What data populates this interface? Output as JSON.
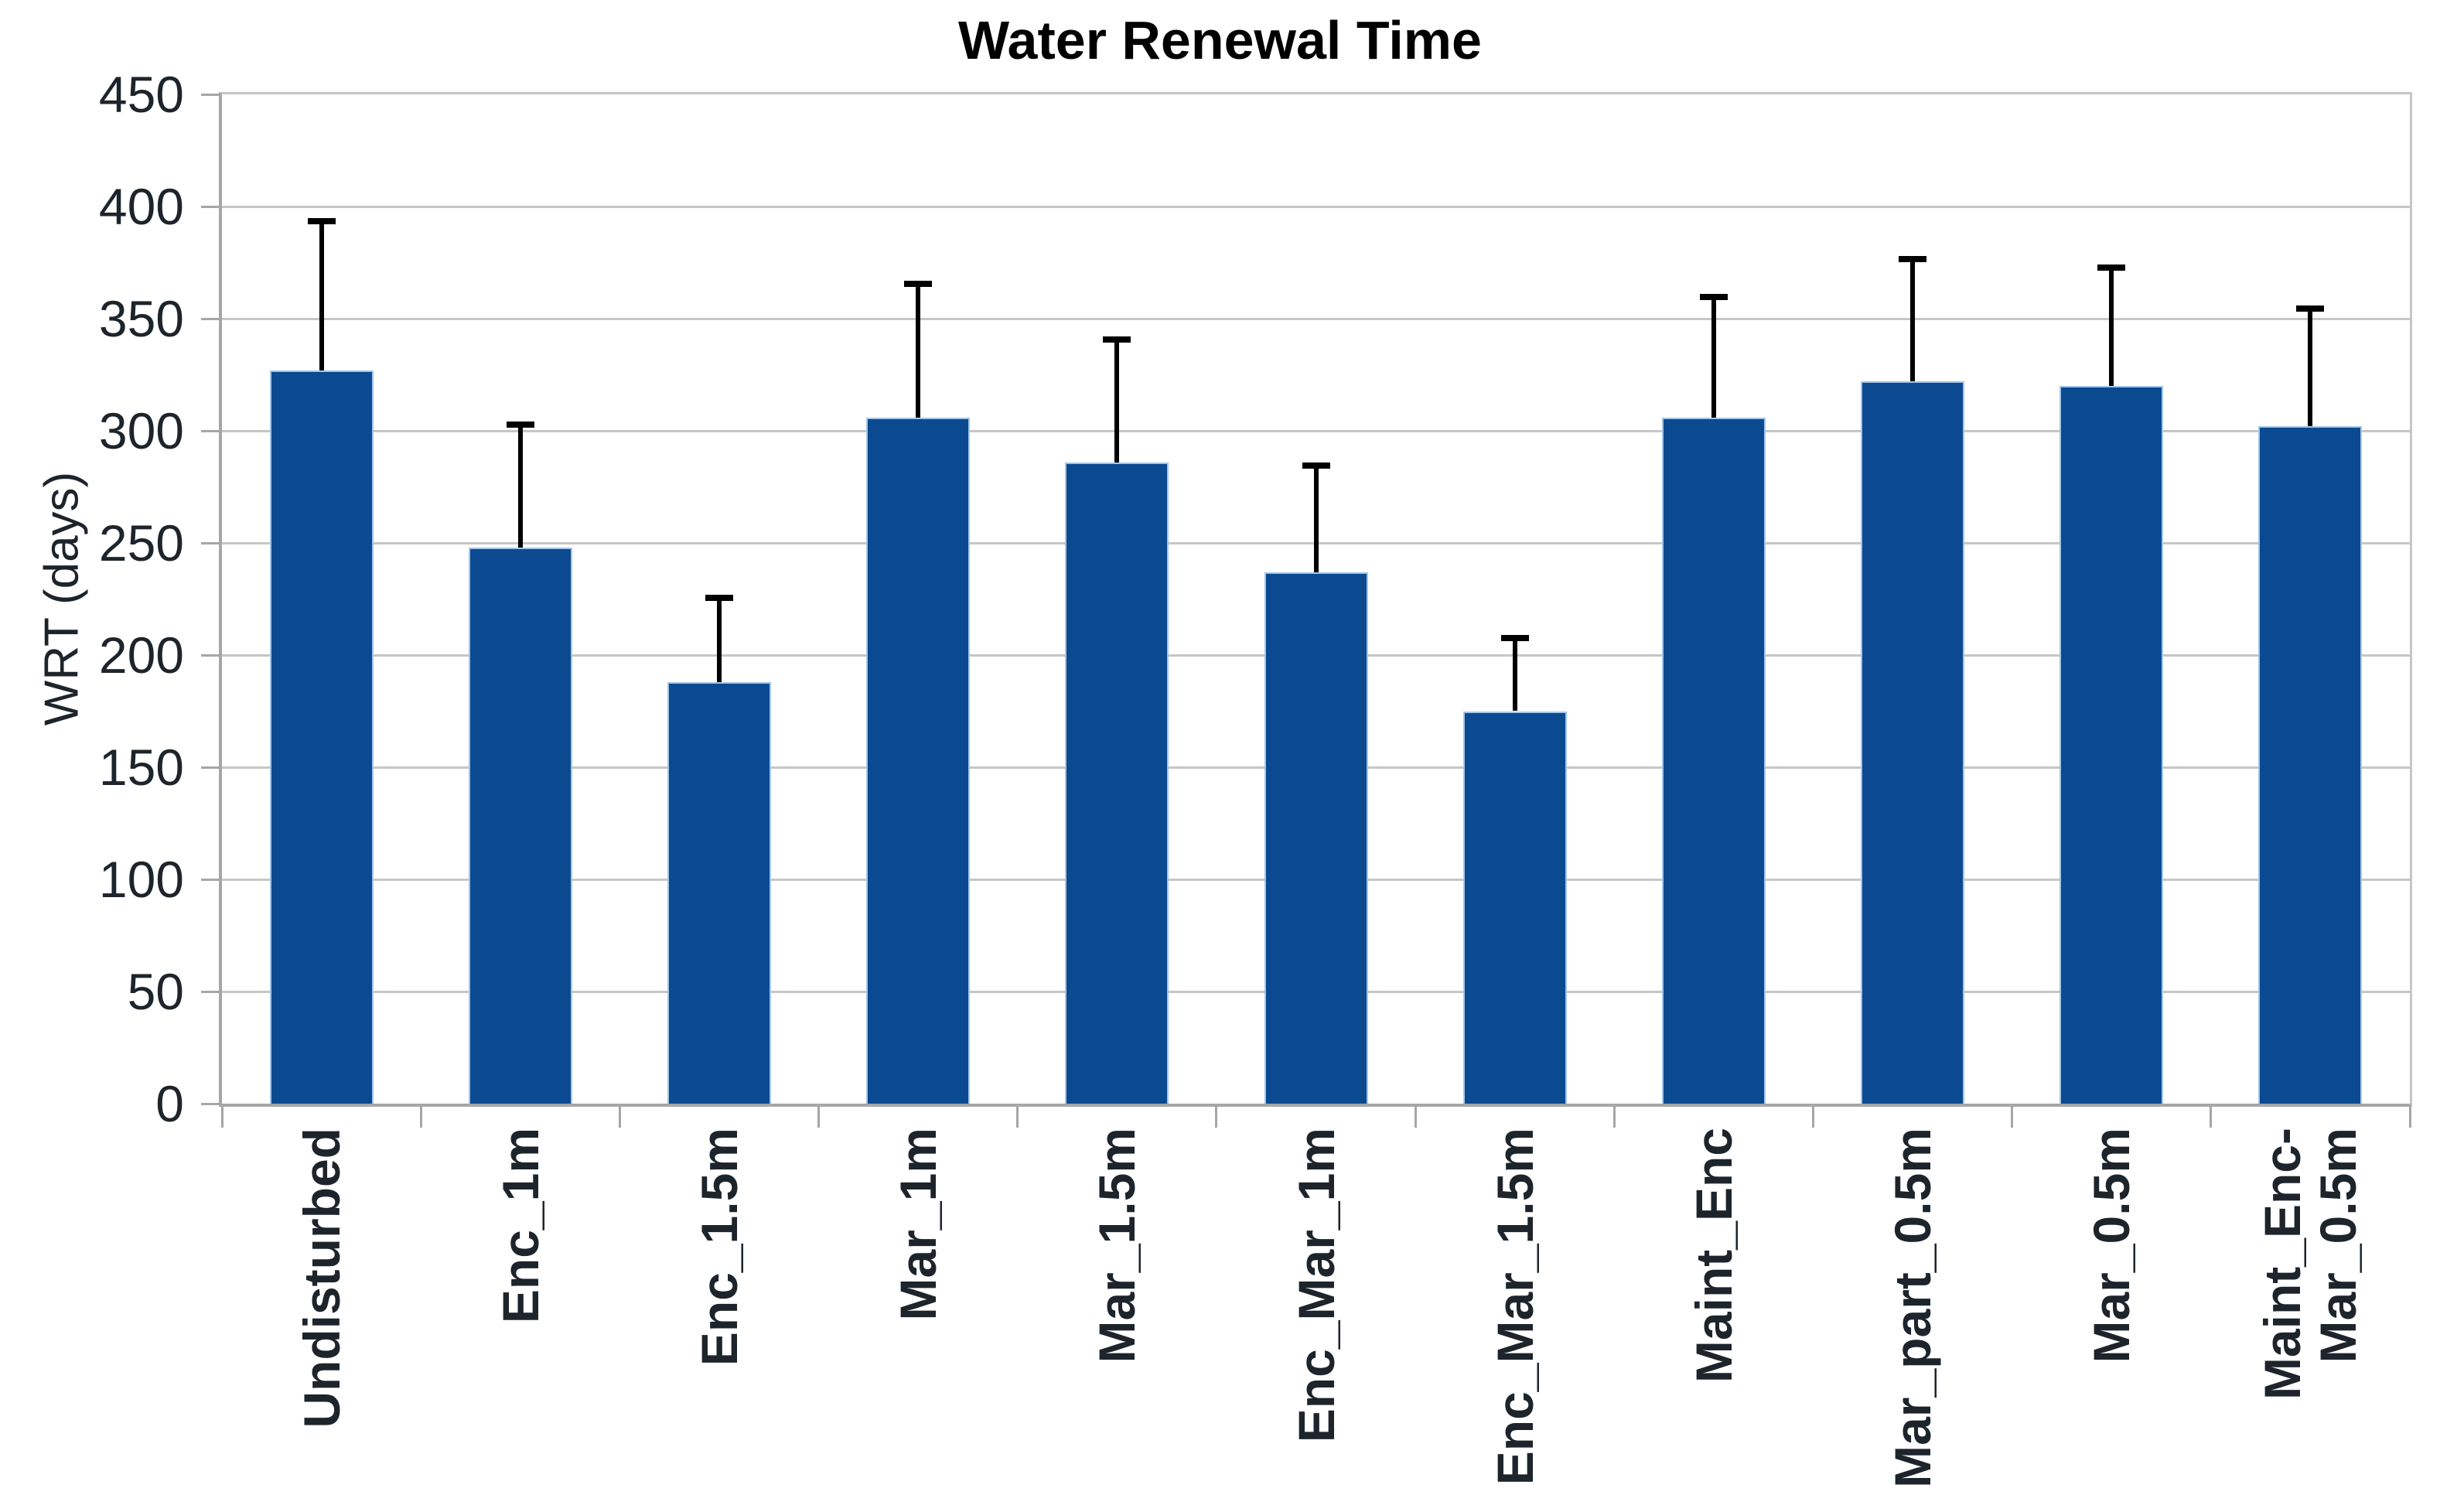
{
  "chart_data": {
    "type": "bar",
    "title": "Water Renewal Time",
    "xlabel": "",
    "ylabel": "WRT (days)",
    "ylim": [
      0,
      450
    ],
    "yticks": [
      0,
      50,
      100,
      150,
      200,
      250,
      300,
      350,
      400,
      450
    ],
    "grid": true,
    "legend": false,
    "categories": [
      "Undisturbed",
      "Enc_1m",
      "Enc_1.5m",
      "Mar_1m",
      "Mar_1.5m",
      "Enc_Mar_1m",
      "Enc_Mar_1.5m",
      "Maint_Enc",
      "Mar_part_0.5m",
      "Mar_0.5m",
      "Maint_Enc-\nMar_0.5m"
    ],
    "values": [
      327,
      248,
      188,
      306,
      286,
      237,
      175,
      306,
      322,
      320,
      302
    ],
    "error_plus": [
      68,
      56,
      39,
      61,
      56,
      49,
      34,
      55,
      56,
      54,
      54
    ],
    "colors": {
      "bar_fill": "#0b4a91",
      "bar_border": "#a3c6e8",
      "error_bar": "#000000",
      "gridline": "#c6c6c6",
      "axis_line": "#a6a6a6",
      "text": "#1d242b",
      "title_text": "#000000",
      "background": "#ffffff"
    }
  }
}
